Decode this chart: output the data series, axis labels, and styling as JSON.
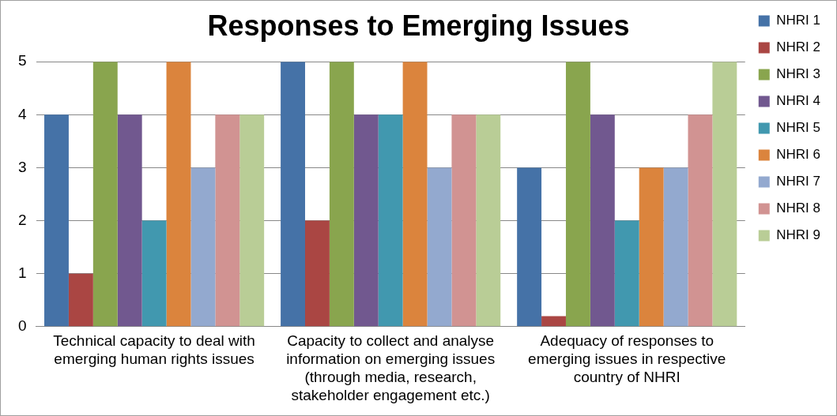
{
  "chart_data": {
    "type": "bar",
    "title": "Responses to Emerging Issues",
    "categories": [
      "Technical capacity to deal with emerging human rights issues",
      "Capacity to collect and analyse information on emerging issues (through media, research, stakeholder engagement etc.)",
      "Adequacy of responses to emerging issues in respective country of NHRI"
    ],
    "series": [
      {
        "name": "NHRI 1",
        "color": "#4572a7",
        "values": [
          4,
          5,
          3
        ]
      },
      {
        "name": "NHRI 2",
        "color": "#aa4643",
        "values": [
          1,
          2,
          0.2
        ]
      },
      {
        "name": "NHRI 3",
        "color": "#89a54e",
        "values": [
          5,
          5,
          5
        ]
      },
      {
        "name": "NHRI 4",
        "color": "#71588f",
        "values": [
          4,
          4,
          4
        ]
      },
      {
        "name": "NHRI 5",
        "color": "#4198af",
        "values": [
          2,
          4,
          2
        ]
      },
      {
        "name": "NHRI 6",
        "color": "#db843d",
        "values": [
          5,
          5,
          3
        ]
      },
      {
        "name": "NHRI 7",
        "color": "#93a9cf",
        "values": [
          3,
          3,
          3
        ]
      },
      {
        "name": "NHRI 8",
        "color": "#d19392",
        "values": [
          4,
          4,
          4
        ]
      },
      {
        "name": "NHRI 9",
        "color": "#b9cd96",
        "values": [
          4,
          4,
          5
        ]
      }
    ],
    "ylim": [
      0,
      5
    ],
    "yticks": [
      0,
      1,
      2,
      3,
      4,
      5
    ],
    "grid": "y",
    "legend": "right"
  }
}
